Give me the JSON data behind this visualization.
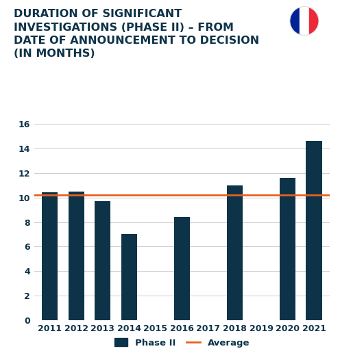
{
  "title": "DURATION OF SIGNIFICANT\nINVESTIGATIONS (PHASE II) – FROM\nDATE OF ANNOUNCEMENT TO DECISION\n(IN MONTHS)",
  "years": [
    "2011",
    "2012",
    "2013",
    "2014",
    "2015",
    "2016",
    "2017",
    "2018",
    "2019",
    "2020",
    "2021"
  ],
  "values": [
    10.4,
    10.5,
    9.7,
    7.0,
    null,
    8.4,
    null,
    11.0,
    null,
    11.6,
    14.6
  ],
  "average": 10.2,
  "bar_color": "#0d3349",
  "avg_color": "#e8601c",
  "background_color": "#ffffff",
  "ylim": [
    0,
    16
  ],
  "yticks": [
    0,
    2,
    4,
    6,
    8,
    10,
    12,
    14,
    16
  ],
  "title_fontsize": 11.5,
  "title_color": "#0d3349",
  "tick_fontsize": 9,
  "legend_fontsize": 9.5,
  "grid_color": "#cccccc"
}
